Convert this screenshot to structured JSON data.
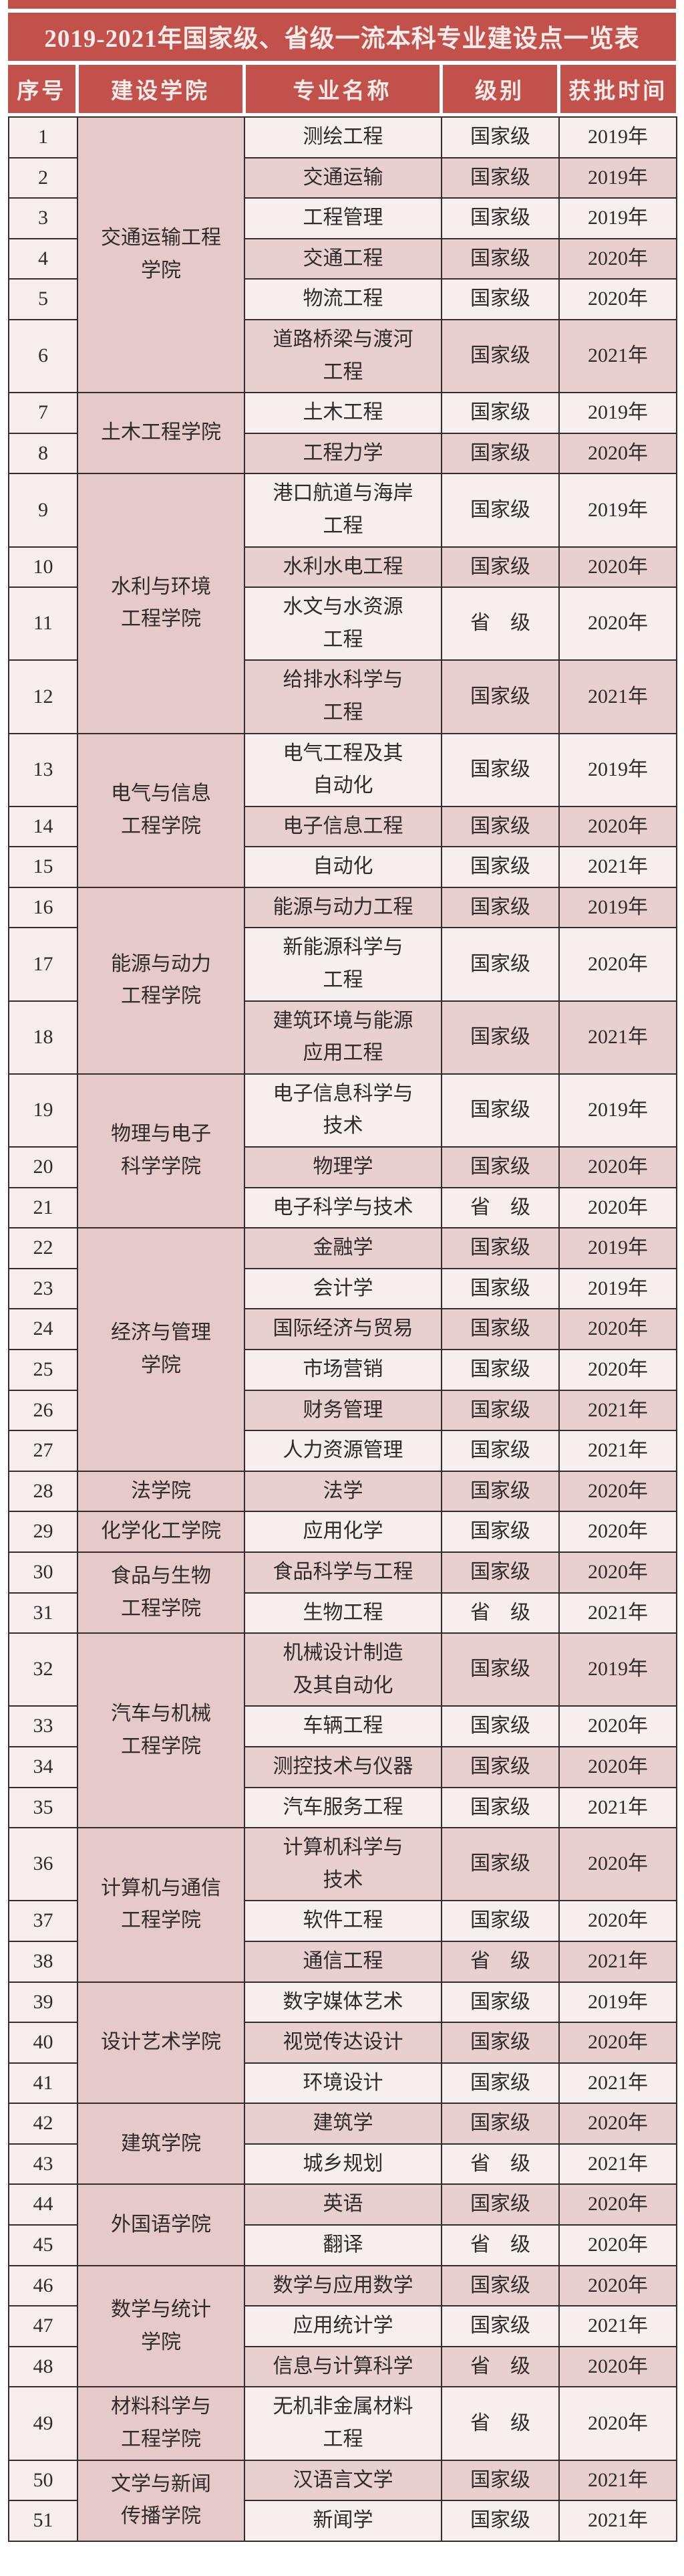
{
  "title": "2019-2021年国家级、省级一流本科专业建设点一览表",
  "columns": [
    "序号",
    "建设学院",
    "专业名称",
    "级别",
    "获批时间"
  ],
  "colors": {
    "accent_red": "#c1514a",
    "header_text": "#f6ecea",
    "row_light": "#f7efee",
    "row_dark": "#e9d0d0",
    "college_cell": "#e6caca",
    "number_cell": "#f6eded",
    "border": "#332d2d"
  },
  "groups": [
    {
      "college": "交通运输工程\n学院",
      "majors": [
        {
          "no": "1",
          "name": "测绘工程",
          "level": "国家级",
          "year": "2019年"
        },
        {
          "no": "2",
          "name": "交通运输",
          "level": "国家级",
          "year": "2019年"
        },
        {
          "no": "3",
          "name": "工程管理",
          "level": "国家级",
          "year": "2019年"
        },
        {
          "no": "4",
          "name": "交通工程",
          "level": "国家级",
          "year": "2020年"
        },
        {
          "no": "5",
          "name": "物流工程",
          "level": "国家级",
          "year": "2020年"
        },
        {
          "no": "6",
          "name": "道路桥梁与渡河\n工程",
          "level": "国家级",
          "year": "2021年"
        }
      ]
    },
    {
      "college": "土木工程学院",
      "majors": [
        {
          "no": "7",
          "name": "土木工程",
          "level": "国家级",
          "year": "2019年"
        },
        {
          "no": "8",
          "name": "工程力学",
          "level": "国家级",
          "year": "2020年"
        }
      ]
    },
    {
      "college": "水利与环境\n工程学院",
      "majors": [
        {
          "no": "9",
          "name": "港口航道与海岸\n工程",
          "level": "国家级",
          "year": "2019年"
        },
        {
          "no": "10",
          "name": "水利水电工程",
          "level": "国家级",
          "year": "2020年"
        },
        {
          "no": "11",
          "name": "水文与水资源\n工程",
          "level": "省　级",
          "year": "2020年"
        },
        {
          "no": "12",
          "name": "给排水科学与\n工程",
          "level": "国家级",
          "year": "2021年"
        }
      ]
    },
    {
      "college": "电气与信息\n工程学院",
      "majors": [
        {
          "no": "13",
          "name": "电气工程及其\n自动化",
          "level": "国家级",
          "year": "2019年"
        },
        {
          "no": "14",
          "name": "电子信息工程",
          "level": "国家级",
          "year": "2020年"
        },
        {
          "no": "15",
          "name": "自动化",
          "level": "国家级",
          "year": "2021年"
        }
      ]
    },
    {
      "college": "能源与动力\n工程学院",
      "majors": [
        {
          "no": "16",
          "name": "能源与动力工程",
          "level": "国家级",
          "year": "2019年"
        },
        {
          "no": "17",
          "name": "新能源科学与\n工程",
          "level": "国家级",
          "year": "2020年"
        },
        {
          "no": "18",
          "name": "建筑环境与能源\n应用工程",
          "level": "国家级",
          "year": "2021年"
        }
      ]
    },
    {
      "college": "物理与电子\n科学学院",
      "majors": [
        {
          "no": "19",
          "name": "电子信息科学与\n技术",
          "level": "国家级",
          "year": "2019年"
        },
        {
          "no": "20",
          "name": "物理学",
          "level": "国家级",
          "year": "2020年"
        },
        {
          "no": "21",
          "name": "电子科学与技术",
          "level": "省　级",
          "year": "2020年"
        }
      ]
    },
    {
      "college": "经济与管理\n学院",
      "majors": [
        {
          "no": "22",
          "name": "金融学",
          "level": "国家级",
          "year": "2019年"
        },
        {
          "no": "23",
          "name": "会计学",
          "level": "国家级",
          "year": "2019年"
        },
        {
          "no": "24",
          "name": "国际经济与贸易",
          "level": "国家级",
          "year": "2020年"
        },
        {
          "no": "25",
          "name": "市场营销",
          "level": "国家级",
          "year": "2020年"
        },
        {
          "no": "26",
          "name": "财务管理",
          "level": "国家级",
          "year": "2021年"
        },
        {
          "no": "27",
          "name": "人力资源管理",
          "level": "国家级",
          "year": "2021年"
        }
      ]
    },
    {
      "college": "法学院",
      "majors": [
        {
          "no": "28",
          "name": "法学",
          "level": "国家级",
          "year": "2020年"
        }
      ]
    },
    {
      "college": "化学化工学院",
      "majors": [
        {
          "no": "29",
          "name": "应用化学",
          "level": "国家级",
          "year": "2020年"
        }
      ]
    },
    {
      "college": "食品与生物\n工程学院",
      "majors": [
        {
          "no": "30",
          "name": "食品科学与工程",
          "level": "国家级",
          "year": "2020年"
        },
        {
          "no": "31",
          "name": "生物工程",
          "level": "省　级",
          "year": "2021年"
        }
      ]
    },
    {
      "college": "汽车与机械\n工程学院",
      "majors": [
        {
          "no": "32",
          "name": "机械设计制造\n及其自动化",
          "level": "国家级",
          "year": "2019年"
        },
        {
          "no": "33",
          "name": "车辆工程",
          "level": "国家级",
          "year": "2020年"
        },
        {
          "no": "34",
          "name": "测控技术与仪器",
          "level": "国家级",
          "year": "2020年"
        },
        {
          "no": "35",
          "name": "汽车服务工程",
          "level": "国家级",
          "year": "2021年"
        }
      ]
    },
    {
      "college": "计算机与通信\n工程学院",
      "majors": [
        {
          "no": "36",
          "name": "计算机科学与\n技术",
          "level": "国家级",
          "year": "2020年"
        },
        {
          "no": "37",
          "name": "软件工程",
          "level": "国家级",
          "year": "2020年"
        },
        {
          "no": "38",
          "name": "通信工程",
          "level": "省　级",
          "year": "2021年"
        }
      ]
    },
    {
      "college": "设计艺术学院",
      "majors": [
        {
          "no": "39",
          "name": "数字媒体艺术",
          "level": "国家级",
          "year": "2019年"
        },
        {
          "no": "40",
          "name": "视觉传达设计",
          "level": "国家级",
          "year": "2020年"
        },
        {
          "no": "41",
          "name": "环境设计",
          "level": "国家级",
          "year": "2021年"
        }
      ]
    },
    {
      "college": "建筑学院",
      "majors": [
        {
          "no": "42",
          "name": "建筑学",
          "level": "国家级",
          "year": "2020年"
        },
        {
          "no": "43",
          "name": "城乡规划",
          "level": "省　级",
          "year": "2021年"
        }
      ]
    },
    {
      "college": "外国语学院",
      "majors": [
        {
          "no": "44",
          "name": "英语",
          "level": "国家级",
          "year": "2020年"
        },
        {
          "no": "45",
          "name": "翻译",
          "level": "省　级",
          "year": "2020年"
        }
      ]
    },
    {
      "college": "数学与统计\n学院",
      "majors": [
        {
          "no": "46",
          "name": "数学与应用数学",
          "level": "国家级",
          "year": "2020年"
        },
        {
          "no": "47",
          "name": "应用统计学",
          "level": "国家级",
          "year": "2021年"
        },
        {
          "no": "48",
          "name": "信息与计算科学",
          "level": "省　级",
          "year": "2020年"
        }
      ]
    },
    {
      "college": "材料科学与\n工程学院",
      "majors": [
        {
          "no": "49",
          "name": "无机非金属材料\n工程",
          "level": "省　级",
          "year": "2020年"
        }
      ]
    },
    {
      "college": "文学与新闻\n传播学院",
      "majors": [
        {
          "no": "50",
          "name": "汉语言文学",
          "level": "国家级",
          "year": "2021年"
        },
        {
          "no": "51",
          "name": "新闻学",
          "level": "国家级",
          "year": "2021年"
        }
      ]
    }
  ]
}
